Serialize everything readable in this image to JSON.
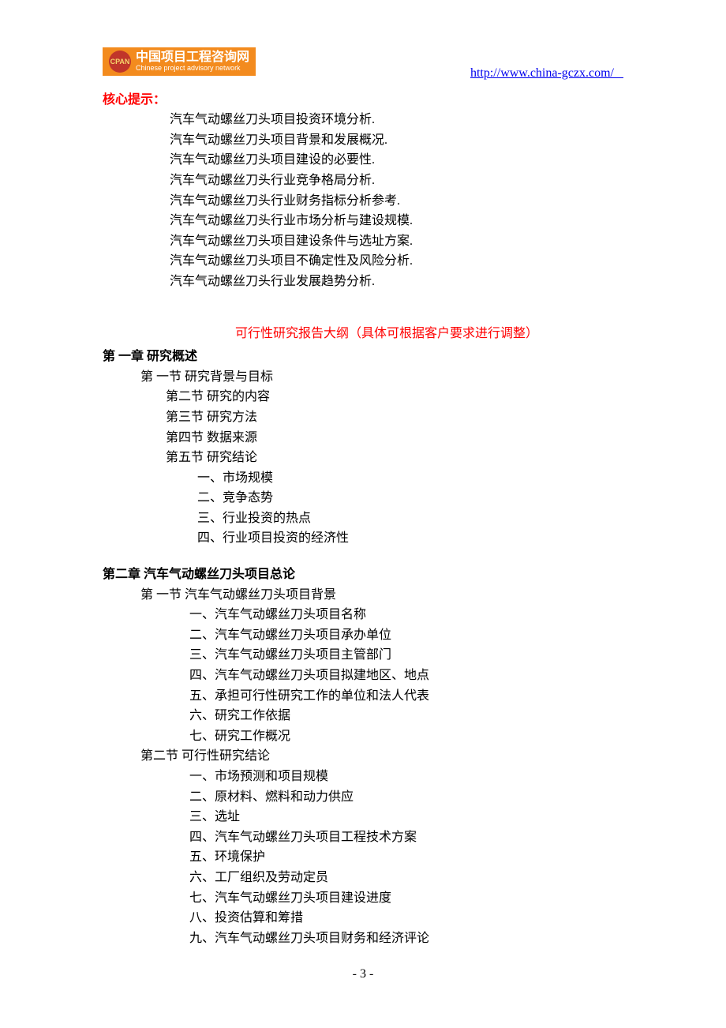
{
  "header": {
    "logo_abbr": "CPAN",
    "logo_cn": "中国项目工程咨询网",
    "logo_en": "Chinese project advisory network",
    "url": "http://www.china-gczx.com/   "
  },
  "core": {
    "title": "核心提示：",
    "items": [
      "汽车气动螺丝刀头项目投资环境分析.",
      "汽车气动螺丝刀头项目背景和发展概况.",
      "汽车气动螺丝刀头项目建设的必要性.",
      "汽车气动螺丝刀头行业竞争格局分析.",
      "汽车气动螺丝刀头行业财务指标分析参考.",
      "汽车气动螺丝刀头行业市场分析与建设规模.",
      "汽车气动螺丝刀头项目建设条件与选址方案.",
      "汽车气动螺丝刀头项目不确定性及风险分析.",
      "汽车气动螺丝刀头行业发展趋势分析."
    ]
  },
  "outline_title": "可行性研究报告大纲（具体可根据客户要求进行调整）",
  "ch1": {
    "title": "第 一章   研究概述",
    "s1": "第 一节  研究背景与目标",
    "s2": "第二节  研究的内容",
    "s3": "第三节  研究方法",
    "s4": "第四节  数据来源",
    "s5": "第五节  研究结论",
    "sub": [
      "一、市场规模",
      "二、竞争态势",
      "三、行业投资的热点",
      "四、行业项目投资的经济性"
    ]
  },
  "ch2": {
    "title": "第二章  汽车气动螺丝刀头项目总论",
    "s1": {
      "title": "第 一节  汽车气动螺丝刀头项目背景",
      "items": [
        "一、汽车气动螺丝刀头项目名称",
        "二、汽车气动螺丝刀头项目承办单位",
        "三、汽车气动螺丝刀头项目主管部门",
        "四、汽车气动螺丝刀头项目拟建地区、地点",
        "五、承担可行性研究工作的单位和法人代表",
        "六、研究工作依据",
        "七、研究工作概况"
      ]
    },
    "s2": {
      "title": "第二节   可行性研究结论",
      "items": [
        "一、市场预测和项目规模",
        "二、原材料、燃料和动力供应",
        "三、选址",
        "四、汽车气动螺丝刀头项目工程技术方案",
        "五、环境保护",
        "六、工厂组织及劳动定员",
        "七、汽车气动螺丝刀头项目建设进度",
        "八、投资估算和筹措",
        "九、汽车气动螺丝刀头项目财务和经济评论"
      ]
    }
  },
  "page_num": "- 3 -"
}
